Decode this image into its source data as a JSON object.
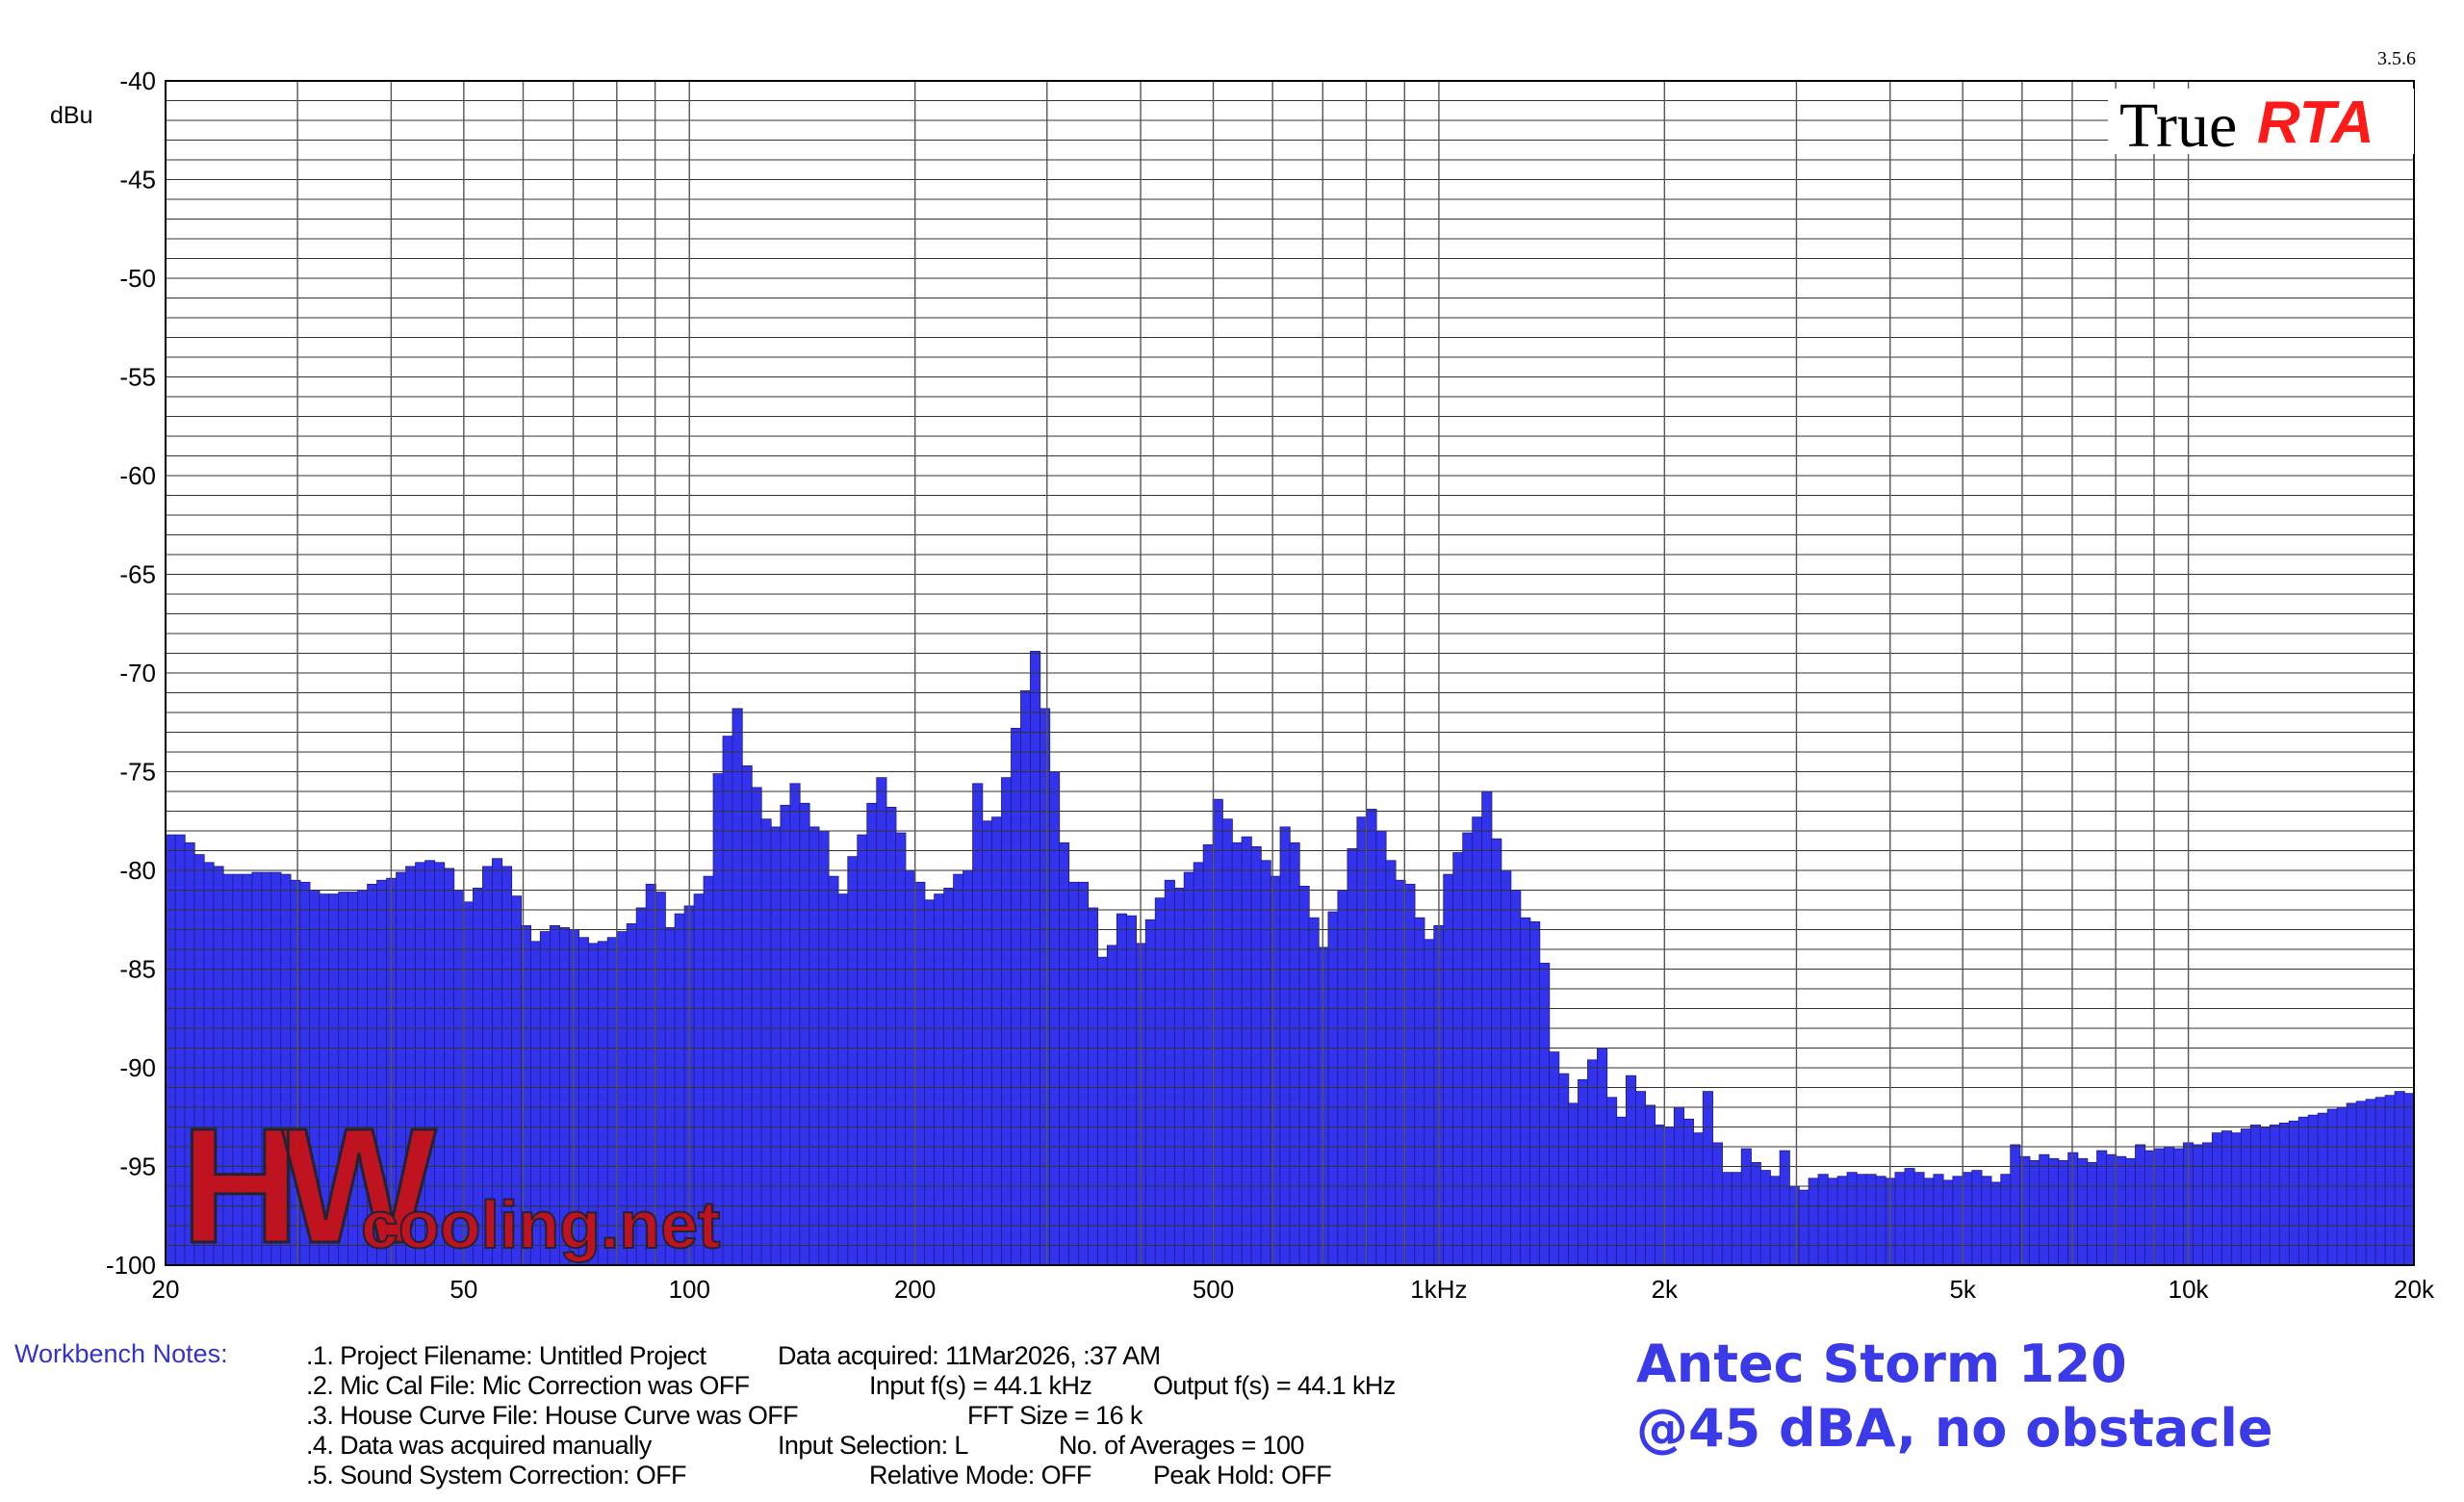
{
  "version": "3.5.6",
  "logo": {
    "true_text": "True",
    "rta_text": "RTA"
  },
  "watermark": {
    "letters": "HW",
    "text": "cooling.net"
  },
  "chart_data": {
    "type": "bar",
    "ylabel": "dBu",
    "ylim": [
      -100,
      -40
    ],
    "y_ticks": [
      -40,
      -45,
      -50,
      -55,
      -60,
      -65,
      -70,
      -75,
      -80,
      -85,
      -90,
      -95,
      -100
    ],
    "x_scale": "log",
    "xlim": [
      20,
      20000
    ],
    "x_ticks": [
      {
        "value": 20,
        "label": "20"
      },
      {
        "value": 50,
        "label": "50"
      },
      {
        "value": 100,
        "label": "100"
      },
      {
        "value": 200,
        "label": "200"
      },
      {
        "value": 500,
        "label": "500"
      },
      {
        "value": 1000,
        "label": "1kHz"
      },
      {
        "value": 2000,
        "label": "2k"
      },
      {
        "value": 5000,
        "label": "5k"
      },
      {
        "value": 10000,
        "label": "10k"
      },
      {
        "value": 20000,
        "label": "20k"
      }
    ],
    "bars_per_octave": 24,
    "bar_color": "#3333ee",
    "grid": true,
    "values": [
      -78.2,
      -78.2,
      -78.6,
      -79.2,
      -79.6,
      -79.8,
      -80.2,
      -80.2,
      -80.2,
      -80.1,
      -80.1,
      -80.1,
      -80.2,
      -80.5,
      -80.6,
      -81.0,
      -81.2,
      -81.2,
      -81.1,
      -81.1,
      -81.0,
      -80.7,
      -80.5,
      -80.4,
      -80.1,
      -79.8,
      -79.6,
      -79.5,
      -79.6,
      -79.9,
      -81.0,
      -81.6,
      -80.9,
      -79.8,
      -79.4,
      -79.8,
      -81.3,
      -82.8,
      -83.6,
      -83.1,
      -82.8,
      -82.9,
      -83.0,
      -83.4,
      -83.7,
      -83.6,
      -83.4,
      -83.1,
      -82.7,
      -81.9,
      -80.7,
      -81.1,
      -82.9,
      -82.2,
      -81.8,
      -81.2,
      -80.3,
      -75.1,
      -73.2,
      -71.8,
      -74.7,
      -75.8,
      -77.4,
      -77.8,
      -76.7,
      -75.6,
      -76.6,
      -77.8,
      -78.0,
      -80.3,
      -81.2,
      -79.3,
      -78.2,
      -76.6,
      -75.3,
      -76.8,
      -78.1,
      -80.0,
      -80.6,
      -81.5,
      -81.2,
      -80.9,
      -80.2,
      -80.0,
      -75.6,
      -77.5,
      -77.3,
      -75.3,
      -72.8,
      -70.9,
      -68.9,
      -71.8,
      -75.0,
      -78.6,
      -80.6,
      -80.6,
      -81.9,
      -84.4,
      -83.8,
      -82.2,
      -82.3,
      -83.7,
      -82.5,
      -81.4,
      -80.5,
      -80.9,
      -80.1,
      -79.6,
      -78.7,
      -76.4,
      -77.4,
      -78.6,
      -78.3,
      -78.8,
      -79.5,
      -80.3,
      -77.8,
      -78.6,
      -80.8,
      -82.4,
      -83.9,
      -82.1,
      -81.0,
      -78.9,
      -77.3,
      -76.9,
      -78.0,
      -79.5,
      -80.5,
      -80.7,
      -82.4,
      -83.5,
      -82.8,
      -80.2,
      -79.1,
      -78.1,
      -77.3,
      -76.0,
      -78.4,
      -80.0,
      -81.0,
      -82.4,
      -82.6,
      -84.7,
      -89.2,
      -90.3,
      -91.8,
      -90.6,
      -89.6,
      -89.0,
      -91.5,
      -92.5,
      -90.4,
      -91.2,
      -91.9,
      -92.9,
      -93.0,
      -92.0,
      -92.6,
      -93.3,
      -91.2,
      -93.8,
      -95.3,
      -95.3,
      -94.1,
      -94.8,
      -95.2,
      -95.5,
      -94.2,
      -96.0,
      -96.2,
      -95.6,
      -95.4,
      -95.6,
      -95.5,
      -95.3,
      -95.4,
      -95.4,
      -95.5,
      -95.6,
      -95.3,
      -95.1,
      -95.3,
      -95.6,
      -95.4,
      -95.7,
      -95.5,
      -95.3,
      -95.2,
      -95.5,
      -95.8,
      -95.4,
      -93.9,
      -94.5,
      -94.7,
      -94.4,
      -94.6,
      -94.7,
      -94.3,
      -94.6,
      -94.8,
      -94.2,
      -94.4,
      -94.5,
      -94.6,
      -93.9,
      -94.2,
      -94.1,
      -94.0,
      -94.1,
      -93.8,
      -93.9,
      -93.8,
      -93.3,
      -93.2,
      -93.3,
      -93.1,
      -92.9,
      -93.0,
      -92.9,
      -92.8,
      -92.7,
      -92.5,
      -92.4,
      -92.3,
      -92.1,
      -92.0,
      -91.8,
      -91.7,
      -91.6,
      -91.5,
      -91.4,
      -91.2,
      -91.3
    ]
  },
  "notes": {
    "label": "Workbench Notes:",
    "line1": ".1. Project Filename: Untitled Project",
    "line2": ".2. Mic Cal File: Mic Correction was OFF",
    "line3": ".3. House Curve File: House Curve was OFF",
    "line4": ".4. Data was acquired manually",
    "line5": ".5. Sound System Correction: OFF",
    "data_acquired": "Data acquired: 11Mar2026,  :37 AM",
    "input_fs": "Input f(s) = 44.1 kHz",
    "output_fs": "Output f(s) = 44.1 kHz",
    "fft_size": "FFT Size = 16 k",
    "input_selection": "Input Selection: L",
    "averages": "No. of Averages = 100",
    "relative_mode": "Relative Mode:  OFF",
    "peak_hold": "Peak Hold: OFF"
  },
  "caption": {
    "line1": "Antec Storm 120",
    "line2": "@45 dBA, no obstacle"
  }
}
